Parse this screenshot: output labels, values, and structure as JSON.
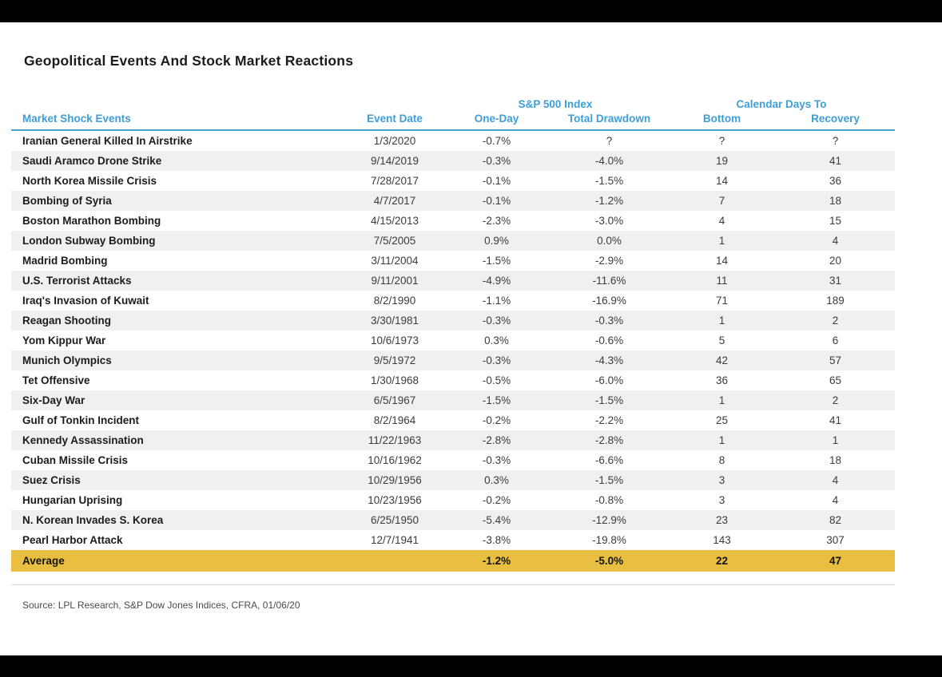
{
  "colors": {
    "header_blue": "#3d9ed8",
    "header_line_blue": "#4aa3d6",
    "average_gold": "#e8bf41",
    "row_stripe": "#f0f0f0",
    "letterbox_black": "#000000"
  },
  "chart_data": {
    "type": "table",
    "title": "Geopolitical Events And Stock Market Reactions",
    "group_headers": {
      "sp500": "S&P 500 Index",
      "calendar_days": "Calendar Days To"
    },
    "columns": [
      "Market Shock Events",
      "Event Date",
      "One-Day",
      "Total Drawdown",
      "Bottom",
      "Recovery"
    ],
    "rows": [
      [
        "Iranian General Killed In Airstrike",
        "1/3/2020",
        "-0.7%",
        "?",
        "?",
        "?"
      ],
      [
        "Saudi Aramco Drone Strike",
        "9/14/2019",
        "-0.3%",
        "-4.0%",
        "19",
        "41"
      ],
      [
        "North Korea Missile Crisis",
        "7/28/2017",
        "-0.1%",
        "-1.5%",
        "14",
        "36"
      ],
      [
        "Bombing of Syria",
        "4/7/2017",
        "-0.1%",
        "-1.2%",
        "7",
        "18"
      ],
      [
        "Boston Marathon Bombing",
        "4/15/2013",
        "-2.3%",
        "-3.0%",
        "4",
        "15"
      ],
      [
        "London Subway Bombing",
        "7/5/2005",
        "0.9%",
        "0.0%",
        "1",
        "4"
      ],
      [
        "Madrid Bombing",
        "3/11/2004",
        "-1.5%",
        "-2.9%",
        "14",
        "20"
      ],
      [
        "U.S. Terrorist Attacks",
        "9/11/2001",
        "-4.9%",
        "-11.6%",
        "11",
        "31"
      ],
      [
        "Iraq's Invasion of Kuwait",
        "8/2/1990",
        "-1.1%",
        "-16.9%",
        "71",
        "189"
      ],
      [
        "Reagan Shooting",
        "3/30/1981",
        "-0.3%",
        "-0.3%",
        "1",
        "2"
      ],
      [
        "Yom Kippur War",
        "10/6/1973",
        "0.3%",
        "-0.6%",
        "5",
        "6"
      ],
      [
        "Munich Olympics",
        "9/5/1972",
        "-0.3%",
        "-4.3%",
        "42",
        "57"
      ],
      [
        "Tet Offensive",
        "1/30/1968",
        "-0.5%",
        "-6.0%",
        "36",
        "65"
      ],
      [
        "Six-Day War",
        "6/5/1967",
        "-1.5%",
        "-1.5%",
        "1",
        "2"
      ],
      [
        "Gulf of Tonkin Incident",
        "8/2/1964",
        "-0.2%",
        "-2.2%",
        "25",
        "41"
      ],
      [
        "Kennedy Assassination",
        "11/22/1963",
        "-2.8%",
        "-2.8%",
        "1",
        "1"
      ],
      [
        "Cuban Missile Crisis",
        "10/16/1962",
        "-0.3%",
        "-6.6%",
        "8",
        "18"
      ],
      [
        "Suez Crisis",
        "10/29/1956",
        "0.3%",
        "-1.5%",
        "3",
        "4"
      ],
      [
        "Hungarian Uprising",
        "10/23/1956",
        "-0.2%",
        "-0.8%",
        "3",
        "4"
      ],
      [
        "N. Korean Invades S. Korea",
        "6/25/1950",
        "-5.4%",
        "-12.9%",
        "23",
        "82"
      ],
      [
        "Pearl Harbor Attack",
        "12/7/1941",
        "-3.8%",
        "-19.8%",
        "143",
        "307"
      ]
    ],
    "average": {
      "label": "Average",
      "event_date": "",
      "one_day": "-1.2%",
      "total_drawdown": "-5.0%",
      "bottom": "22",
      "recovery": "47"
    },
    "source": "Source: LPL Research, S&P Dow Jones Indices, CFRA, 01/06/20"
  }
}
